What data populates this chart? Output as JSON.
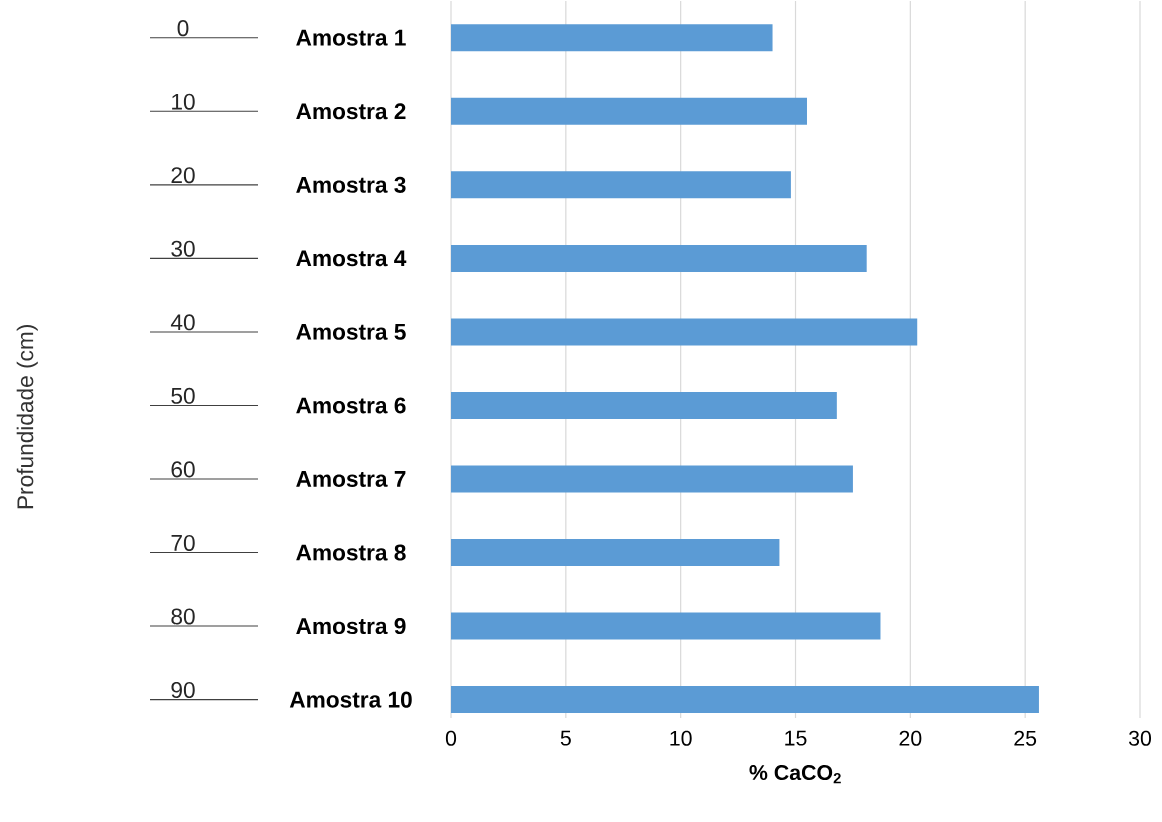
{
  "chart_data": {
    "type": "bar",
    "orientation": "horizontal",
    "xlabel": "% CaCO$_{2}$",
    "categories": [
      "Amostra 1",
      "Amostra 2",
      "Amostra 3",
      "Amostra 4",
      "Amostra 5",
      "Amostra 6",
      "Amostra 7",
      "Amostra  8",
      "Amostra 9",
      "Amostra 10"
    ],
    "values": [
      14.0,
      15.5,
      14.8,
      18.1,
      20.3,
      16.8,
      17.5,
      14.3,
      18.7,
      25.6
    ],
    "color": "#5b9bd5",
    "xlim": [
      0,
      30
    ],
    "xticks": [
      0,
      5,
      10,
      15,
      20,
      25,
      30
    ],
    "grid": "x",
    "annotations": [
      "0",
      "10",
      "20",
      "30",
      "40",
      "50",
      "60",
      "70",
      "80",
      "90",
      "Profundidade (cm)"
    ]
  }
}
